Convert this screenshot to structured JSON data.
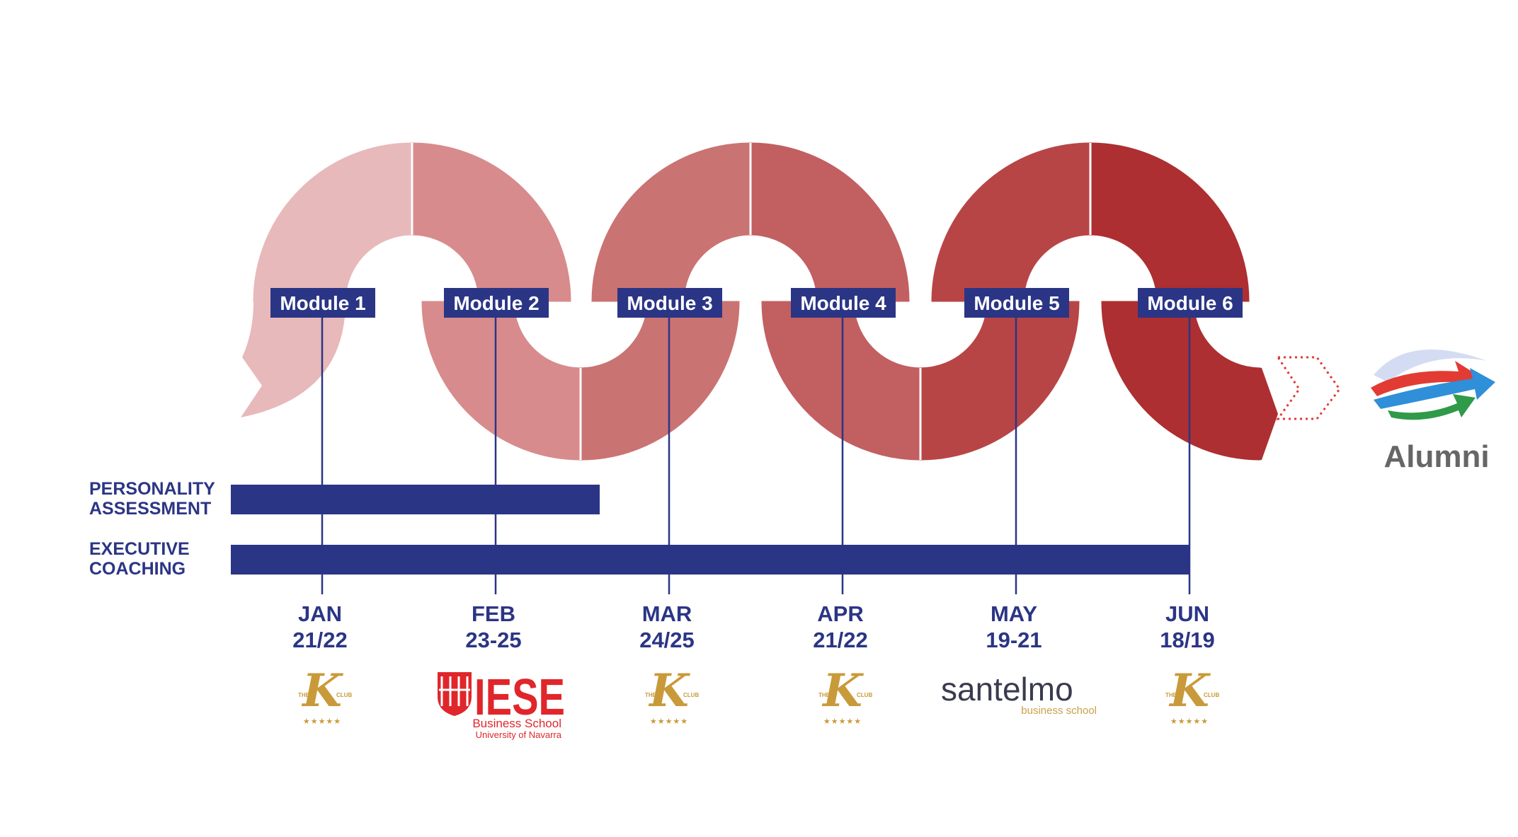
{
  "modules": [
    {
      "label": "Module 1",
      "month": "JAN",
      "days": "21/22",
      "venue": "kclub"
    },
    {
      "label": "Module 2",
      "month": "FEB",
      "days": "23-25",
      "venue": "iese"
    },
    {
      "label": "Module 3",
      "month": "MAR",
      "days": "24/25",
      "venue": "kclub"
    },
    {
      "label": "Module 4",
      "month": "APR",
      "days": "21/22",
      "venue": "kclub"
    },
    {
      "label": "Module 5",
      "month": "MAY",
      "days": "19-21",
      "venue": "santelmo"
    },
    {
      "label": "Module 6",
      "month": "JUN",
      "days": "18/19",
      "venue": "kclub"
    }
  ],
  "tracks": [
    {
      "line1": "PERSONALITY",
      "line2": "ASSESSMENT",
      "end_module": 2.6
    },
    {
      "line1": "EXECUTIVE",
      "line2": "COACHING",
      "end_module": 6
    }
  ],
  "logos": {
    "kclub": {
      "the": "THE",
      "letter": "K",
      "club": "CLUB",
      "stars": "★★★★★"
    },
    "iese": {
      "name": "IESE",
      "line1": "Business School",
      "line2": "University of Navarra"
    },
    "santelmo": {
      "name_a": "san",
      "name_b": "telmo",
      "sub": "business school"
    }
  },
  "alumni": {
    "label": "Alumni"
  },
  "colors": {
    "navy": "#2b3585",
    "wave": [
      "#e8b9ba",
      "#d88b8c",
      "#ca7373",
      "#c25f61",
      "#b84546",
      "#ad2f31"
    ],
    "gold": "#c99a3a",
    "iese_red": "#e0262b",
    "santelmo_gray": "#3a3a50",
    "santelmo_gold": "#c9a04a",
    "alumni_gray": "#666666",
    "arrow_red": "#e23b33",
    "arrow_blue": "#2f8fd8",
    "arrow_green": "#2f9a48"
  }
}
